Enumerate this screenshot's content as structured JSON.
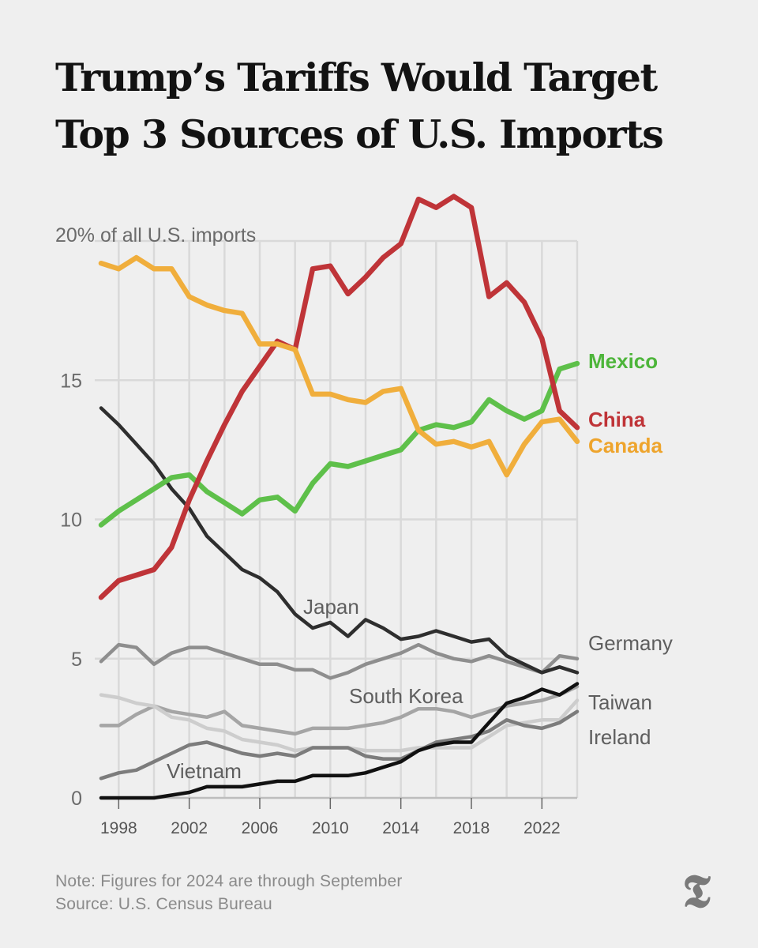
{
  "chart_data": {
    "type": "line",
    "title": "Trump’s Tariffs Would Target\nTop 3 Sources of U.S. Imports",
    "ytitle": "20% of all U.S. imports",
    "xlim": [
      1997,
      2024
    ],
    "ylim": [
      0,
      20
    ],
    "y_ticks": [
      0,
      5,
      10,
      15
    ],
    "x_ticks": [
      1998,
      2002,
      2006,
      2010,
      2014,
      2018,
      2022
    ],
    "grid": true,
    "x": [
      1997,
      1998,
      1999,
      2000,
      2001,
      2002,
      2003,
      2004,
      2005,
      2006,
      2007,
      2008,
      2009,
      2010,
      2011,
      2012,
      2013,
      2014,
      2015,
      2016,
      2017,
      2018,
      2019,
      2020,
      2021,
      2022,
      2023,
      2024
    ],
    "series": [
      {
        "name": "Germany",
        "color": "#8e8e8e",
        "values": [
          4.9,
          5.5,
          5.4,
          4.8,
          5.2,
          5.4,
          5.4,
          5.2,
          5.0,
          4.8,
          4.8,
          4.6,
          4.6,
          4.3,
          4.5,
          4.8,
          5.0,
          5.2,
          5.5,
          5.2,
          5.0,
          4.9,
          5.1,
          4.9,
          4.7,
          4.5,
          5.1,
          5.0
        ]
      },
      {
        "name": "South Korea",
        "color": "#a5a5a5",
        "values": [
          2.6,
          2.6,
          3.0,
          3.3,
          3.1,
          3.0,
          2.9,
          3.1,
          2.6,
          2.5,
          2.4,
          2.3,
          2.5,
          2.5,
          2.5,
          2.6,
          2.7,
          2.9,
          3.2,
          3.2,
          3.1,
          2.9,
          3.1,
          3.3,
          3.4,
          3.5,
          3.7,
          4.0
        ]
      },
      {
        "name": "Taiwan",
        "color": "#cdcdcd",
        "values": [
          3.7,
          3.6,
          3.4,
          3.3,
          2.9,
          2.8,
          2.5,
          2.4,
          2.1,
          2.0,
          1.9,
          1.7,
          1.8,
          1.8,
          1.8,
          1.7,
          1.7,
          1.7,
          1.8,
          1.8,
          1.8,
          1.8,
          2.2,
          2.6,
          2.7,
          2.8,
          2.8,
          3.5
        ]
      },
      {
        "name": "Ireland",
        "color": "#7c7c7c",
        "values": [
          0.7,
          0.9,
          1.0,
          1.3,
          1.6,
          1.9,
          2.0,
          1.8,
          1.6,
          1.5,
          1.6,
          1.5,
          1.8,
          1.8,
          1.8,
          1.5,
          1.4,
          1.4,
          1.7,
          2.0,
          2.1,
          2.2,
          2.4,
          2.8,
          2.6,
          2.5,
          2.7,
          3.1
        ]
      },
      {
        "name": "Vietnam",
        "color": "#111111",
        "values": [
          0.0,
          0.0,
          0.0,
          0.0,
          0.1,
          0.2,
          0.4,
          0.4,
          0.4,
          0.5,
          0.6,
          0.6,
          0.8,
          0.8,
          0.8,
          0.9,
          1.1,
          1.3,
          1.7,
          1.9,
          2.0,
          2.0,
          2.7,
          3.4,
          3.6,
          3.9,
          3.7,
          4.1
        ]
      },
      {
        "name": "Japan",
        "color": "#2e2e2e",
        "values": [
          14.0,
          13.4,
          12.7,
          12.0,
          11.1,
          10.4,
          9.4,
          8.8,
          8.2,
          7.9,
          7.4,
          6.6,
          6.1,
          6.3,
          5.8,
          6.4,
          6.1,
          5.7,
          5.8,
          6.0,
          5.8,
          5.6,
          5.7,
          5.1,
          4.8,
          4.5,
          4.7,
          4.5
        ]
      },
      {
        "name": "Mexico",
        "color": "#5ec04a",
        "values": [
          9.8,
          10.3,
          10.7,
          11.1,
          11.5,
          11.6,
          11.0,
          10.6,
          10.2,
          10.7,
          10.8,
          10.3,
          11.3,
          12.0,
          11.9,
          12.1,
          12.3,
          12.5,
          13.2,
          13.4,
          13.3,
          13.5,
          14.3,
          13.9,
          13.6,
          13.9,
          15.4,
          15.6
        ]
      },
      {
        "name": "China",
        "color": "#bf3438",
        "values": [
          7.2,
          7.8,
          8.0,
          8.2,
          9.0,
          10.7,
          12.1,
          13.4,
          14.6,
          15.5,
          16.4,
          16.1,
          19.0,
          19.1,
          18.1,
          18.7,
          19.4,
          19.9,
          21.5,
          21.2,
          21.6,
          21.2,
          18.0,
          18.5,
          17.8,
          16.5,
          13.9,
          13.3
        ]
      },
      {
        "name": "Canada",
        "color": "#f0ae3c",
        "values": [
          19.2,
          19.0,
          19.4,
          19.0,
          19.0,
          18.0,
          17.7,
          17.5,
          17.4,
          16.3,
          16.3,
          16.1,
          14.5,
          14.5,
          14.3,
          14.2,
          14.6,
          14.7,
          13.2,
          12.7,
          12.8,
          12.6,
          12.8,
          11.6,
          12.7,
          13.5,
          13.6,
          12.8
        ]
      }
    ],
    "labels": {
      "mexico": "Mexico",
      "china": "China",
      "canada": "Canada",
      "germany": "Germany",
      "japan": "Japan",
      "south_korea": "South Korea",
      "taiwan": "Taiwan",
      "ireland": "Ireland",
      "vietnam": "Vietnam"
    }
  },
  "notes": {
    "note": "Note: Figures for 2024 are through September",
    "source": "Source: U.S. Census Bureau"
  },
  "logo": {
    "icon": "nyt-t-logo-icon",
    "glyph": "T"
  }
}
